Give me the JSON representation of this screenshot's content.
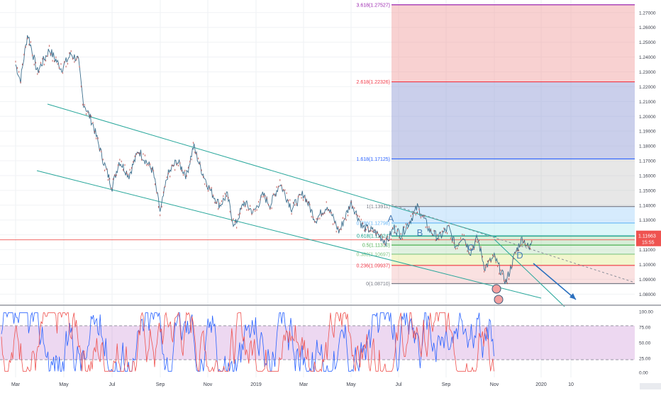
{
  "chart_data": [
    {
      "type": "line",
      "panel": "price",
      "instrument_note": "",
      "x_ticks": [
        "Mar",
        "May",
        "Jul",
        "Sep",
        "Nov",
        "2019",
        "Mar",
        "May",
        "Jul",
        "Sep",
        "Nov",
        "2020",
        "10"
      ],
      "y_ticks": [
        "1.27000",
        "1.26000",
        "1.25000",
        "1.24000",
        "1.23000",
        "1.22000",
        "1.21000",
        "1.20000",
        "1.19000",
        "1.18000",
        "1.17000",
        "1.16000",
        "1.15000",
        "1.14000",
        "1.13000",
        "1.12000",
        "1.11000",
        "1.10000",
        "1.09000",
        "1.08000"
      ],
      "ylim": [
        1.073,
        1.2785
      ],
      "current_price": {
        "label": "1.11663",
        "value": 1.11663,
        "timer": "15:55",
        "color": "#ef5350"
      },
      "price_path": [
        {
          "m": 0.0,
          "v": 1.235
        },
        {
          "m": 0.2,
          "v": 1.224
        },
        {
          "m": 0.5,
          "v": 1.256
        },
        {
          "m": 0.9,
          "v": 1.23
        },
        {
          "m": 1.4,
          "v": 1.245
        },
        {
          "m": 1.9,
          "v": 1.232
        },
        {
          "m": 2.3,
          "v": 1.242
        },
        {
          "m": 2.6,
          "v": 1.238
        },
        {
          "m": 2.8,
          "v": 1.21
        },
        {
          "m": 3.2,
          "v": 1.195
        },
        {
          "m": 3.6,
          "v": 1.172
        },
        {
          "m": 4.0,
          "v": 1.152
        },
        {
          "m": 4.3,
          "v": 1.17
        },
        {
          "m": 4.7,
          "v": 1.16
        },
        {
          "m": 5.1,
          "v": 1.177
        },
        {
          "m": 5.7,
          "v": 1.163
        },
        {
          "m": 6.0,
          "v": 1.135
        },
        {
          "m": 6.3,
          "v": 1.16
        },
        {
          "m": 6.7,
          "v": 1.17
        },
        {
          "m": 7.1,
          "v": 1.16
        },
        {
          "m": 7.4,
          "v": 1.18
        },
        {
          "m": 7.7,
          "v": 1.165
        },
        {
          "m": 8.1,
          "v": 1.15
        },
        {
          "m": 8.5,
          "v": 1.14
        },
        {
          "m": 8.8,
          "v": 1.147
        },
        {
          "m": 9.1,
          "v": 1.125
        },
        {
          "m": 9.5,
          "v": 1.142
        },
        {
          "m": 9.9,
          "v": 1.135
        },
        {
          "m": 10.3,
          "v": 1.147
        },
        {
          "m": 10.6,
          "v": 1.14
        },
        {
          "m": 11.0,
          "v": 1.155
        },
        {
          "m": 11.5,
          "v": 1.138
        },
        {
          "m": 12.0,
          "v": 1.148
        },
        {
          "m": 12.5,
          "v": 1.13
        },
        {
          "m": 13.0,
          "v": 1.14
        },
        {
          "m": 13.5,
          "v": 1.122
        },
        {
          "m": 14.0,
          "v": 1.142
        },
        {
          "m": 14.5,
          "v": 1.125
        },
        {
          "m": 15.0,
          "v": 1.122
        },
        {
          "m": 15.5,
          "v": 1.115
        },
        {
          "m": 15.8,
          "v": 1.125
        },
        {
          "m": 16.1,
          "v": 1.12
        },
        {
          "m": 16.5,
          "v": 1.13
        },
        {
          "m": 16.8,
          "v": 1.139
        },
        {
          "m": 17.0,
          "v": 1.133
        },
        {
          "m": 17.3,
          "v": 1.123
        },
        {
          "m": 17.7,
          "v": 1.118
        },
        {
          "m": 18.1,
          "v": 1.125
        },
        {
          "m": 18.4,
          "v": 1.112
        },
        {
          "m": 18.7,
          "v": 1.12
        },
        {
          "m": 19.0,
          "v": 1.108
        },
        {
          "m": 19.3,
          "v": 1.118
        },
        {
          "m": 19.6,
          "v": 1.098
        },
        {
          "m": 20.0,
          "v": 1.105
        },
        {
          "m": 20.5,
          "v": 1.088
        },
        {
          "m": 20.9,
          "v": 1.108
        },
        {
          "m": 21.2,
          "v": 1.118
        },
        {
          "m": 21.5,
          "v": 1.11
        },
        {
          "m": 21.6,
          "v": 1.117
        }
      ],
      "fib_levels": [
        {
          "label": "0(1.08710)",
          "value": 1.0871,
          "color": "#787b86",
          "fill": "#ef9a9a",
          "fill_opacity": 0.3
        },
        {
          "label": "0.236(1.09937)",
          "value": 1.09937,
          "color": "#f23645",
          "fill": "#e6ee9c",
          "fill_opacity": 0.5
        },
        {
          "label": "0.382(1.10697)",
          "value": 1.10697,
          "color": "#81c784",
          "fill": "#c8e6c9",
          "fill_opacity": 0.55
        },
        {
          "label": "0.5(1.11310)",
          "value": 1.1131,
          "color": "#4caf50",
          "fill": "#a5d6a7",
          "fill_opacity": 0.45
        },
        {
          "label": "0.618(1.11924)",
          "value": 1.11924,
          "color": "#089981",
          "fill": "#b2ebf2",
          "fill_opacity": 0.45
        },
        {
          "label": "0.786(1.12798)",
          "value": 1.12798,
          "color": "#64b5f6",
          "fill": "#bbdefb",
          "fill_opacity": 0.6
        },
        {
          "label": "1(1.13911)",
          "value": 1.13911,
          "color": "#787b86",
          "fill": "#b0b0b0",
          "fill_opacity": 0.3
        },
        {
          "label": "1.618(1.17125)",
          "value": 1.17125,
          "color": "#2962ff",
          "fill": "#9fa8da",
          "fill_opacity": 0.55
        },
        {
          "label": "2.618(1.22326)",
          "value": 1.22326,
          "color": "#f23645",
          "fill": "#ef9a9a",
          "fill_opacity": 0.45
        },
        {
          "label": "3.618(1.27527)",
          "value": 1.27527,
          "color": "#9c27b0",
          "fill": "#ce93d8",
          "fill_opacity": 0.45
        }
      ],
      "wave_labels": [
        "A",
        "B",
        "C",
        "D"
      ],
      "channel_color": "#26a69a",
      "projection_color": "#2a6fbe"
    },
    {
      "type": "line",
      "panel": "oscillator",
      "y_ticks": [
        "100.00",
        "75.00",
        "50.00",
        "25.00",
        "0.00"
      ],
      "ylim": [
        0,
        100
      ],
      "band": [
        20,
        80
      ],
      "band_color": "#9c27b0",
      "series": [
        {
          "line_color": "#2962ff"
        },
        {
          "line_color": "#ef5350"
        }
      ]
    }
  ]
}
